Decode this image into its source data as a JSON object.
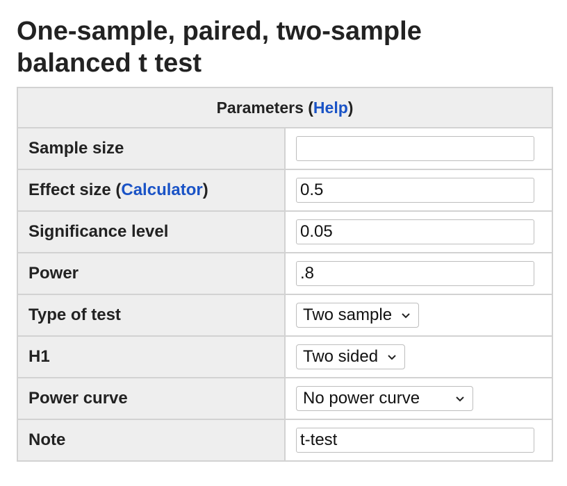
{
  "page": {
    "title_line1": "One-sample, paired, two-sample",
    "title_line2": "balanced t test"
  },
  "table": {
    "header_prefix": "Parameters (",
    "header_link": "Help",
    "header_suffix": ")",
    "rows": {
      "sample_size": {
        "label": "Sample size",
        "value": ""
      },
      "effect_size": {
        "label_prefix": "Effect size (",
        "label_link": "Calculator",
        "label_suffix": ")",
        "value": "0.5"
      },
      "significance": {
        "label": "Significance level",
        "value": "0.05"
      },
      "power": {
        "label": "Power",
        "value": ".8"
      },
      "type_of_test": {
        "label": "Type of test",
        "selected": "Two sample"
      },
      "h1": {
        "label": "H1",
        "selected": "Two sided"
      },
      "power_curve": {
        "label": "Power curve",
        "selected": "No power curve"
      },
      "note": {
        "label": "Note",
        "value": "t-test"
      }
    }
  },
  "colors": {
    "link": "#1a53c6",
    "label_bg": "#eeeeee",
    "border": "#d2d2d2"
  },
  "icons": {
    "dropdown": "chevron-down-icon"
  }
}
